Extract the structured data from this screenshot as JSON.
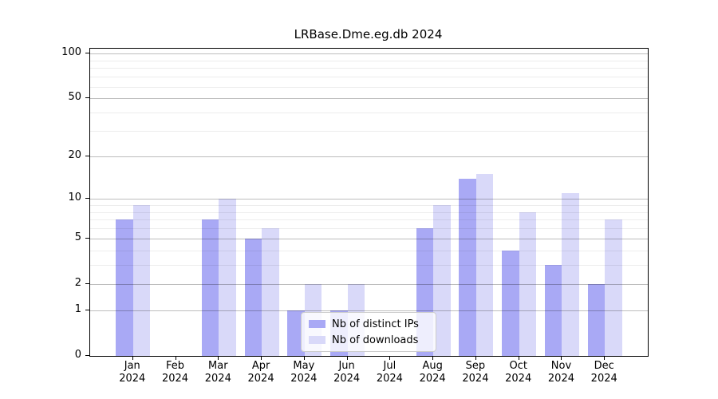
{
  "chart_data": {
    "type": "bar",
    "title": "LRBase.Dme.eg.db 2024",
    "categories": [
      "Jan",
      "Feb",
      "Mar",
      "Apr",
      "May",
      "Jun",
      "Jul",
      "Aug",
      "Sep",
      "Oct",
      "Nov",
      "Dec"
    ],
    "x_sublabel": "2024",
    "series": [
      {
        "name": "Nb of distinct IPs",
        "color": "#a9a9f5",
        "values": [
          7,
          0,
          7,
          5,
          1,
          1,
          0,
          6,
          14,
          4,
          3,
          2
        ]
      },
      {
        "name": "Nb of downloads",
        "color": "#d9d9f9",
        "values": [
          9,
          0,
          10,
          6,
          2,
          2,
          0,
          9,
          15,
          8,
          11,
          7
        ]
      }
    ],
    "yscale": "log1p",
    "yticks": [
      0,
      1,
      2,
      5,
      10,
      20,
      50,
      100
    ],
    "minor_gridlines": [
      3,
      4,
      6,
      7,
      8,
      9,
      30,
      40,
      60,
      70,
      80,
      90
    ],
    "ylim": [
      0,
      108
    ],
    "grid": true,
    "legend_position": "lower center"
  }
}
